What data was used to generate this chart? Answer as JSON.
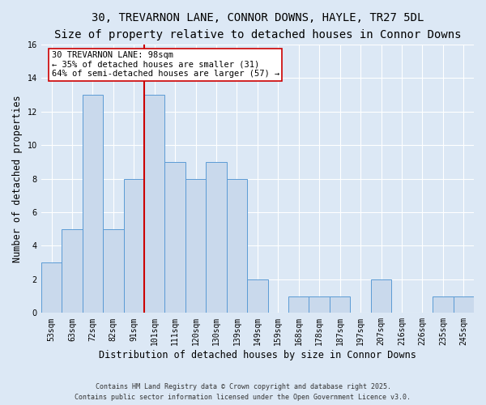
{
  "title_line1": "30, TREVARNON LANE, CONNOR DOWNS, HAYLE, TR27 5DL",
  "title_line2": "Size of property relative to detached houses in Connor Downs",
  "xlabel": "Distribution of detached houses by size in Connor Downs",
  "ylabel": "Number of detached properties",
  "categories": [
    "53sqm",
    "63sqm",
    "72sqm",
    "82sqm",
    "91sqm",
    "101sqm",
    "111sqm",
    "120sqm",
    "130sqm",
    "139sqm",
    "149sqm",
    "159sqm",
    "168sqm",
    "178sqm",
    "187sqm",
    "197sqm",
    "207sqm",
    "216sqm",
    "226sqm",
    "235sqm",
    "245sqm"
  ],
  "values": [
    3,
    5,
    13,
    5,
    8,
    13,
    9,
    8,
    9,
    8,
    2,
    0,
    1,
    1,
    1,
    0,
    2,
    0,
    0,
    1,
    1
  ],
  "bar_color": "#c9d9ec",
  "bar_edge_color": "#5b9bd5",
  "highlight_index": 5,
  "red_line_color": "#cc0000",
  "annotation_line1": "30 TREVARNON LANE: 98sqm",
  "annotation_line2": "← 35% of detached houses are smaller (31)",
  "annotation_line3": "64% of semi-detached houses are larger (57) →",
  "annotation_box_color": "#ffffff",
  "annotation_box_edge": "#cc0000",
  "ylim": [
    0,
    16
  ],
  "yticks": [
    0,
    2,
    4,
    6,
    8,
    10,
    12,
    14,
    16
  ],
  "footer_line1": "Contains HM Land Registry data © Crown copyright and database right 2025.",
  "footer_line2": "Contains public sector information licensed under the Open Government Licence v3.0.",
  "bg_color": "#dce8f5",
  "plot_bg_color": "#dce8f5",
  "title_fontsize": 10,
  "subtitle_fontsize": 9,
  "axis_label_fontsize": 8.5,
  "tick_fontsize": 7,
  "annotation_fontsize": 7.5,
  "footer_fontsize": 6
}
